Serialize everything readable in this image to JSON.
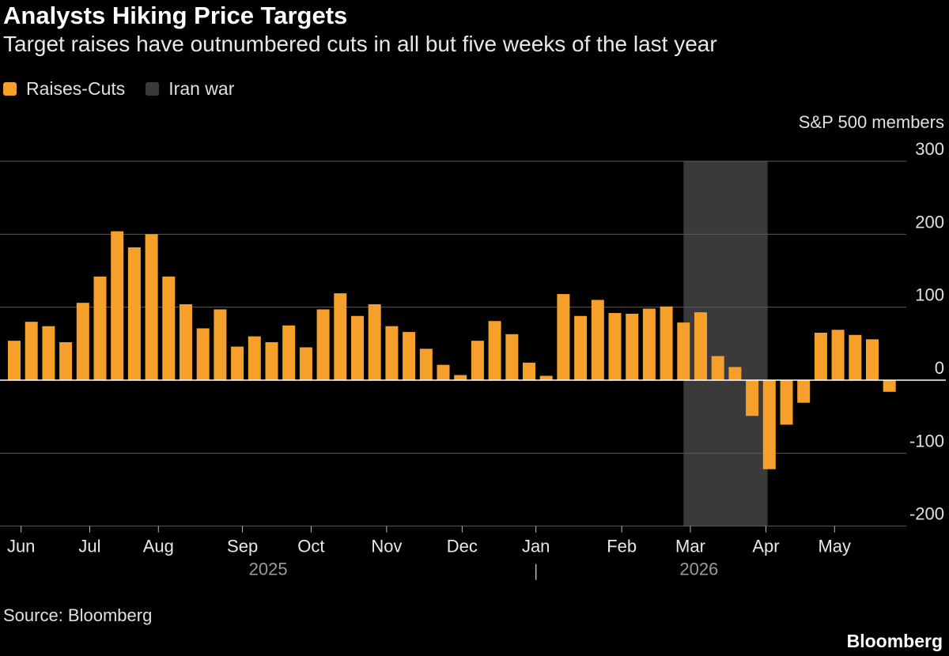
{
  "header": {
    "title": "Analysts Hiking Price Targets",
    "subtitle": "Target raises have outnumbered cuts in all but five weeks of the last year"
  },
  "legend": [
    {
      "label": "Raises-Cuts",
      "color": "#f5a02a"
    },
    {
      "label": "Iran war",
      "color": "#3a3a3a"
    }
  ],
  "footer": {
    "source": "Source: Bloomberg",
    "brand": "Bloomberg"
  },
  "chart_data": {
    "type": "bar",
    "ylabel": "S&P 500 members",
    "ylim": [
      -200,
      300
    ],
    "yticks": [
      300,
      200,
      100,
      0,
      -100,
      -200
    ],
    "bar_color": "#f5a02a",
    "shade_color": "#3a3a3a",
    "grid": true,
    "values": [
      54,
      80,
      74,
      52,
      106,
      142,
      204,
      182,
      200,
      142,
      104,
      71,
      97,
      46,
      60,
      52,
      75,
      45,
      97,
      119,
      88,
      104,
      74,
      66,
      43,
      21,
      7,
      54,
      81,
      63,
      24,
      6,
      118,
      88,
      110,
      92,
      91,
      98,
      101,
      79,
      93,
      33,
      18,
      -49,
      -122,
      -61,
      -31,
      65,
      69,
      62,
      56,
      -16
    ],
    "x_month_labels": [
      {
        "label": "Jun",
        "week": 0.4
      },
      {
        "label": "Jul",
        "week": 4.4
      },
      {
        "label": "Aug",
        "week": 8.4
      },
      {
        "label": "Sep",
        "week": 13.3
      },
      {
        "label": "Oct",
        "week": 17.3
      },
      {
        "label": "Nov",
        "week": 21.7
      },
      {
        "label": "Dec",
        "week": 26.1
      },
      {
        "label": "Jan",
        "week": 30.4
      },
      {
        "label": "Feb",
        "week": 35.4
      },
      {
        "label": "Mar",
        "week": 39.4
      },
      {
        "label": "Apr",
        "week": 43.8
      },
      {
        "label": "May",
        "week": 47.8
      }
    ],
    "year_labels": [
      {
        "label": "2025",
        "week": 14.8
      },
      {
        "label": "2026",
        "week": 39.9
      }
    ],
    "year_divider_week": 30.4,
    "shaded_region": {
      "label": "Iran war",
      "start_week": 39.0,
      "end_week": 43.9
    }
  }
}
